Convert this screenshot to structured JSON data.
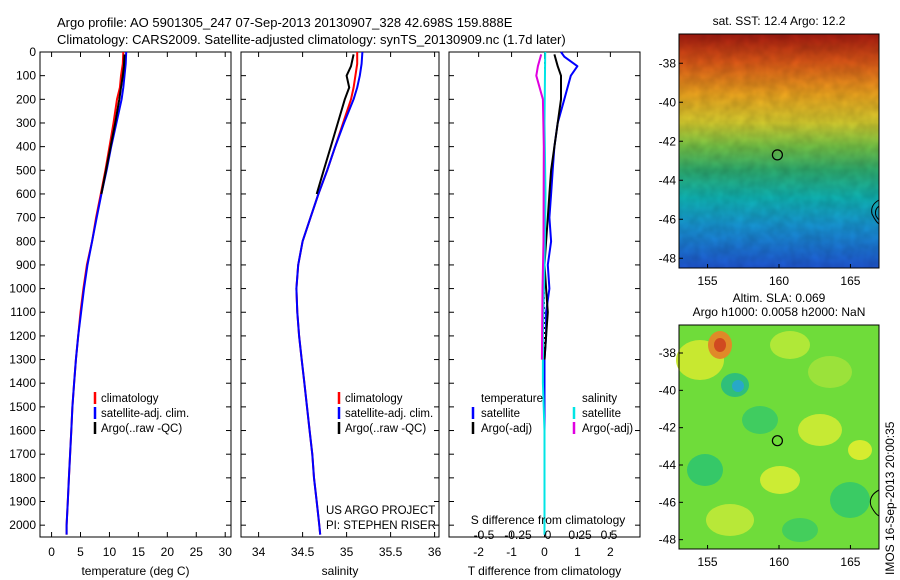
{
  "header": {
    "line1": "Argo profile: AO 5901305_247 07-Sep-2013 20130907_328 42.698S 159.888E",
    "line2": "Climatology: CARS2009. Satellite-adjusted climatology: synTS_20130909.nc (1.7d later)"
  },
  "colors": {
    "climatology": "#ff0000",
    "satellite": "#0000ff",
    "argo": "#000000",
    "sal_satellite": "#00e5e5",
    "sal_argo": "#e000e0"
  },
  "credits": {
    "project": "US ARGO PROJECT",
    "pi": "PI: STEPHEN RISER"
  },
  "timestamp": "IMOS 16-Sep-2013 20:00:35",
  "chart_data": [
    {
      "id": "temperature",
      "type": "line",
      "xlabel": "temperature (deg C)",
      "ylabel": "",
      "xlim": [
        -2,
        31
      ],
      "ylim": [
        2050,
        0
      ],
      "xticks": [
        0,
        5,
        10,
        15,
        20,
        25,
        30
      ],
      "yticks": [
        0,
        100,
        200,
        300,
        400,
        500,
        600,
        700,
        800,
        900,
        1000,
        1100,
        1200,
        1300,
        1400,
        1500,
        1600,
        1700,
        1800,
        1900,
        2000
      ],
      "legend": [
        "climatology",
        "satellite-adj. clim.",
        "Argo(..raw -QC)"
      ],
      "series": [
        {
          "name": "climatology",
          "color": "#ff0000",
          "points": [
            [
              12.4,
              0
            ],
            [
              12.3,
              50
            ],
            [
              12.0,
              100
            ],
            [
              11.8,
              150
            ],
            [
              11.3,
              200
            ],
            [
              10.7,
              300
            ],
            [
              10.0,
              400
            ],
            [
              9.3,
              500
            ],
            [
              8.5,
              600
            ],
            [
              7.7,
              700
            ],
            [
              7.0,
              800
            ],
            [
              6.1,
              900
            ],
            [
              5.5,
              1000
            ],
            [
              5.0,
              1100
            ],
            [
              4.6,
              1200
            ],
            [
              4.2,
              1300
            ],
            [
              3.9,
              1400
            ],
            [
              3.6,
              1500
            ],
            [
              3.4,
              1600
            ],
            [
              3.2,
              1700
            ],
            [
              3.0,
              1800
            ],
            [
              2.8,
              1900
            ],
            [
              2.6,
              2000
            ],
            [
              2.6,
              2040
            ]
          ]
        },
        {
          "name": "satellite-adj. clim.",
          "color": "#0000ff",
          "points": [
            [
              12.9,
              0
            ],
            [
              12.8,
              50
            ],
            [
              12.6,
              100
            ],
            [
              12.4,
              150
            ],
            [
              12.1,
              200
            ],
            [
              11.2,
              300
            ],
            [
              10.3,
              400
            ],
            [
              9.5,
              500
            ],
            [
              8.6,
              600
            ],
            [
              7.8,
              700
            ],
            [
              7.0,
              800
            ],
            [
              6.2,
              900
            ],
            [
              5.6,
              1000
            ],
            [
              5.1,
              1100
            ],
            [
              4.6,
              1200
            ],
            [
              4.2,
              1300
            ],
            [
              3.9,
              1400
            ],
            [
              3.6,
              1500
            ],
            [
              3.4,
              1600
            ],
            [
              3.2,
              1700
            ],
            [
              3.0,
              1800
            ],
            [
              2.8,
              1900
            ],
            [
              2.6,
              2000
            ],
            [
              2.6,
              2040
            ]
          ]
        },
        {
          "name": "Argo(..raw -QC)",
          "color": "#000000",
          "points": [
            [
              12.6,
              10
            ],
            [
              12.5,
              60
            ],
            [
              12.3,
              100
            ],
            [
              12.0,
              150
            ],
            [
              11.7,
              200
            ],
            [
              11.0,
              300
            ],
            [
              10.2,
              400
            ],
            [
              9.4,
              500
            ],
            [
              8.6,
              600
            ]
          ]
        }
      ]
    },
    {
      "id": "salinity",
      "type": "line",
      "xlabel": "salinity",
      "ylabel": "",
      "xlim": [
        33.8,
        36.05
      ],
      "ylim": [
        2050,
        0
      ],
      "xticks": [
        34,
        34.5,
        35,
        35.5,
        36
      ],
      "legend": [
        "climatology",
        "satellite-adj. clim.",
        "Argo(..raw -QC)"
      ],
      "series": [
        {
          "name": "climatology",
          "color": "#ff0000",
          "points": [
            [
              35.12,
              0
            ],
            [
              35.12,
              50
            ],
            [
              35.1,
              100
            ],
            [
              35.08,
              150
            ],
            [
              35.05,
              200
            ],
            [
              34.96,
              300
            ],
            [
              34.87,
              400
            ],
            [
              34.78,
              500
            ],
            [
              34.68,
              600
            ],
            [
              34.59,
              700
            ],
            [
              34.5,
              800
            ],
            [
              34.45,
              900
            ],
            [
              34.43,
              1000
            ],
            [
              34.44,
              1100
            ],
            [
              34.46,
              1200
            ],
            [
              34.49,
              1300
            ],
            [
              34.52,
              1400
            ],
            [
              34.55,
              1500
            ],
            [
              34.58,
              1600
            ],
            [
              34.61,
              1700
            ],
            [
              34.63,
              1800
            ],
            [
              34.66,
              1900
            ],
            [
              34.69,
              2000
            ],
            [
              34.7,
              2040
            ]
          ]
        },
        {
          "name": "satellite-adj. clim.",
          "color": "#0000ff",
          "points": [
            [
              35.18,
              0
            ],
            [
              35.17,
              50
            ],
            [
              35.15,
              100
            ],
            [
              35.12,
              150
            ],
            [
              35.08,
              200
            ],
            [
              34.97,
              300
            ],
            [
              34.87,
              400
            ],
            [
              34.78,
              500
            ],
            [
              34.68,
              600
            ],
            [
              34.59,
              700
            ],
            [
              34.5,
              800
            ],
            [
              34.45,
              900
            ],
            [
              34.43,
              1000
            ],
            [
              34.44,
              1100
            ],
            [
              34.46,
              1200
            ],
            [
              34.49,
              1300
            ],
            [
              34.52,
              1400
            ],
            [
              34.55,
              1500
            ],
            [
              34.58,
              1600
            ],
            [
              34.61,
              1700
            ],
            [
              34.63,
              1800
            ],
            [
              34.66,
              1900
            ],
            [
              34.69,
              2000
            ],
            [
              34.7,
              2040
            ]
          ]
        },
        {
          "name": "Argo(..raw -QC)",
          "color": "#000000",
          "points": [
            [
              35.08,
              10
            ],
            [
              35.05,
              60
            ],
            [
              35.0,
              100
            ],
            [
              35.03,
              150
            ],
            [
              34.98,
              200
            ],
            [
              34.9,
              300
            ],
            [
              34.82,
              400
            ],
            [
              34.74,
              500
            ],
            [
              34.66,
              600
            ]
          ]
        }
      ]
    },
    {
      "id": "difference",
      "type": "line",
      "xlabel": "T difference from climatology",
      "ylabel": "",
      "xlim": [
        -2.9,
        2.9
      ],
      "ylim": [
        2050,
        0
      ],
      "xticks": [
        -2,
        -1,
        0,
        1,
        2
      ],
      "top_axis_title": "S difference from climatology",
      "top_axis_ticks": [
        "-0.5",
        "-0.25",
        "0",
        "0.25",
        "0.5"
      ],
      "legend_groups": [
        {
          "title": "temperature",
          "items": [
            {
              "name": "satellite",
              "color": "#0000ff"
            },
            {
              "name": "Argo(-adj)",
              "color": "#000000"
            }
          ]
        },
        {
          "title": "salinity",
          "items": [
            {
              "name": "satellite",
              "color": "#00e5e5"
            },
            {
              "name": "Argo(-adj)",
              "color": "#e000e0"
            }
          ]
        }
      ],
      "series": [
        {
          "name": "T satellite",
          "color": "#0000ff",
          "points": [
            [
              0.5,
              0
            ],
            [
              0.6,
              20
            ],
            [
              1.0,
              60
            ],
            [
              0.8,
              100
            ],
            [
              0.6,
              200
            ],
            [
              0.4,
              300
            ],
            [
              0.3,
              400
            ],
            [
              0.25,
              500
            ],
            [
              0.2,
              600
            ],
            [
              0.15,
              700
            ],
            [
              0.2,
              800
            ],
            [
              0.1,
              900
            ],
            [
              0.15,
              1000
            ],
            [
              0.05,
              1100
            ],
            [
              0.05,
              1200
            ],
            [
              0.0,
              1300
            ],
            [
              0.0,
              1500
            ],
            [
              0.0,
              2040
            ]
          ]
        },
        {
          "name": "T Argo(-adj)",
          "color": "#000000",
          "points": [
            [
              0.3,
              10
            ],
            [
              0.4,
              60
            ],
            [
              0.5,
              100
            ],
            [
              0.5,
              200
            ],
            [
              0.4,
              300
            ],
            [
              0.3,
              400
            ],
            [
              0.2,
              500
            ],
            [
              0.15,
              600
            ],
            [
              0.1,
              700
            ],
            [
              0.05,
              800
            ],
            [
              0.0,
              900
            ],
            [
              0.05,
              1000
            ],
            [
              0.1,
              1100
            ],
            [
              0.05,
              1200
            ],
            [
              0.0,
              1300
            ]
          ]
        },
        {
          "name": "S satellite",
          "color": "#00e5e5",
          "points": [
            [
              0.02,
              0
            ],
            [
              0.0,
              300
            ],
            [
              0.03,
              600
            ],
            [
              0.0,
              900
            ],
            [
              -0.05,
              1200
            ],
            [
              -0.05,
              1400
            ],
            [
              0.0,
              1600
            ],
            [
              0.0,
              2040
            ]
          ]
        },
        {
          "name": "S Argo(-adj)",
          "color": "#e000e0",
          "points": [
            [
              -0.1,
              10
            ],
            [
              -0.2,
              60
            ],
            [
              -0.25,
              100
            ],
            [
              -0.05,
              200
            ],
            [
              -0.02,
              400
            ],
            [
              -0.03,
              800
            ],
            [
              -0.06,
              1000
            ],
            [
              -0.08,
              1300
            ]
          ]
        }
      ]
    },
    {
      "id": "sst-map",
      "type": "heatmap",
      "title": "sat. SST: 12.4  Argo: 12.2",
      "xlim": [
        153,
        167
      ],
      "ylim": [
        -48.5,
        -36.5
      ],
      "xticks": [
        155,
        160,
        165
      ],
      "yticks": [
        -38,
        -40,
        -42,
        -44,
        -46,
        -48
      ],
      "marker": {
        "lon": 159.888,
        "lat": -42.698
      }
    },
    {
      "id": "sla-map",
      "type": "heatmap",
      "title": "Altim. SLA: 0.069",
      "subtitle": "Argo h1000: 0.0058 h2000: NaN",
      "xlim": [
        153,
        167
      ],
      "ylim": [
        -48.5,
        -36.5
      ],
      "xticks": [
        155,
        160,
        165
      ],
      "yticks": [
        -38,
        -40,
        -42,
        -44,
        -46,
        -48
      ],
      "marker": {
        "lon": 159.888,
        "lat": -42.698
      }
    }
  ]
}
